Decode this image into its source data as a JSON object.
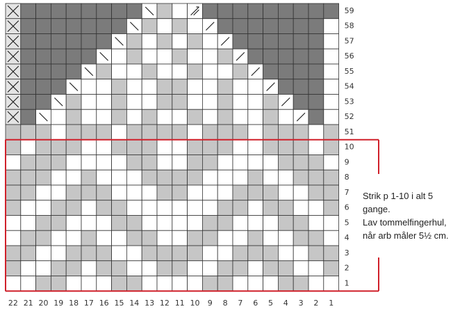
{
  "chart": {
    "rows": [
      {
        "label": "59",
        "cells": "XDDDDDDDDBGWADDDDDDDDD"
      },
      {
        "label": "58",
        "cells": "XDDDDDDDBGWGWFDDDDDDDW"
      },
      {
        "label": "57",
        "cells": "XDDDDDDBGWGWGWFDDDDDDW"
      },
      {
        "label": "56",
        "cells": "XDDDDDBWGWWGWWGFDDDDDW"
      },
      {
        "label": "55",
        "cells": "XDDDDBGWWGWWGWWGFDDDDW"
      },
      {
        "label": "54",
        "cells": "XDDDBWWGWWGGWWGWWFDDDW"
      },
      {
        "label": "53",
        "cells": "XDDBGWWGWWGGWWGWWGFDDW"
      },
      {
        "label": "52",
        "cells": "XDBWGWWGWGWWGWGWWGWFDW"
      },
      {
        "label": "51",
        "cells": "GGGWGGGWGGGGWGGGWGGGWG"
      },
      {
        "label": "10",
        "cells": "GWGGGWWGGGWWGGGWWGGGWG"
      },
      {
        "label": "9",
        "cells": "WGGGWWWWGGWWGGWWWWGGGW"
      },
      {
        "label": "8",
        "cells": "GGGWWGWWWGGGGWWWGWWGGG"
      },
      {
        "label": "7",
        "cells": "GGWWGGGWWWGGWWWGGGWWGG"
      },
      {
        "label": "6",
        "cells": "GWWGGWGGWWWWWWGGWGGWWG"
      },
      {
        "label": "5",
        "cells": "WWGGWWWGGWWWWGGWWWGGWW"
      },
      {
        "label": "4",
        "cells": "WGGWWGWWGGWWGGWWGWWGGW"
      },
      {
        "label": "3",
        "cells": "GGWWGGGWWGGGGWWGGGWWGG"
      },
      {
        "label": "2",
        "cells": "GWWGGWGGWWGGWWGGWGGWWG"
      },
      {
        "label": "1",
        "cells": "WWGGWWWGGWWWWGGWWWGGWW"
      }
    ],
    "column_labels": [
      "22",
      "21",
      "20",
      "19",
      "18",
      "17",
      "16",
      "15",
      "14",
      "13",
      "12",
      "11",
      "10",
      "9",
      "8",
      "7",
      "6",
      "5",
      "4",
      "3",
      "2",
      "1"
    ],
    "note": [
      "Strik p 1-10 i alt 5",
      "gange.",
      "Lav tommelfingerhul,",
      "når arb måler 5½ cm."
    ]
  }
}
